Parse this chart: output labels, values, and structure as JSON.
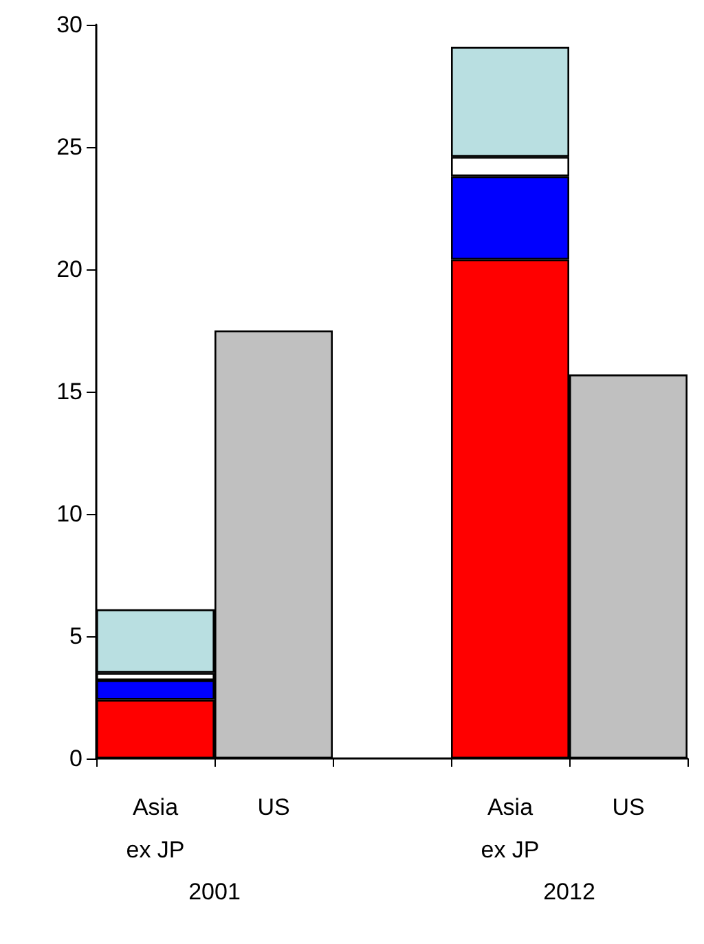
{
  "chart_data": {
    "type": "bar",
    "stacked": true,
    "categories": [
      "Asia\nex JP",
      "US",
      null,
      "Asia\nex JP",
      "US"
    ],
    "series": [
      {
        "color": "#ff0000",
        "values": [
          2.4,
          null,
          null,
          20.4,
          null
        ]
      },
      {
        "color": "#0000ff",
        "values": [
          0.8,
          null,
          null,
          3.4,
          null
        ]
      },
      {
        "color": "#ffffff",
        "values": [
          0.3,
          null,
          null,
          0.8,
          null
        ]
      },
      {
        "color": "#b9dfe1",
        "values": [
          2.6,
          null,
          null,
          4.5,
          null
        ]
      },
      {
        "color": "#c0c0c0",
        "values": [
          null,
          17.5,
          null,
          null,
          15.7
        ]
      }
    ],
    "ylim": [
      0,
      30
    ],
    "yticks": [
      0,
      5,
      10,
      15,
      20,
      25,
      30
    ],
    "grid": false,
    "annotations": [
      "2001",
      "2012"
    ]
  }
}
